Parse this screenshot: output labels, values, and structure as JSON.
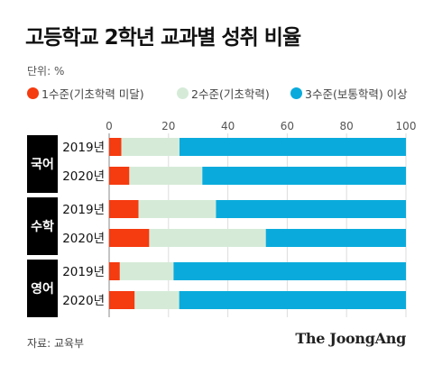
{
  "title": "고등학교 2학년 교과별 성취 비율",
  "unit": "단위: %",
  "source": "자료: 교육부",
  "brand": "The JoongAng",
  "colors": {
    "level1": "#f53b10",
    "level2": "#d5ebd8",
    "level3": "#0aabdc",
    "subject_bg": "#000000"
  },
  "legend": [
    {
      "label": "1수준(기초학력 미달)",
      "color": "#f53b10"
    },
    {
      "label": "2수준(기초학력)",
      "color": "#d5ebd8"
    },
    {
      "label": "3수준(보통학력) 이상",
      "color": "#0aabdc"
    }
  ],
  "chart_data": {
    "type": "bar",
    "orientation": "horizontal",
    "stacked": true,
    "title": "고등학교 2학년 교과별 성취 비율",
    "xlim": [
      0,
      100
    ],
    "xticks": [
      0,
      20,
      40,
      60,
      80,
      100
    ],
    "groups": [
      {
        "subject": "국어",
        "rows": [
          {
            "year": "2019년",
            "values": [
              4.1,
              19.6,
              76.3
            ]
          },
          {
            "year": "2020년",
            "values": [
              6.8,
              24.6,
              68.6
            ]
          }
        ]
      },
      {
        "subject": "수학",
        "rows": [
          {
            "year": "2019년",
            "values": [
              9.9,
              26.1,
              64.0
            ]
          },
          {
            "year": "2020년",
            "values": [
              13.5,
              39.3,
              47.2
            ]
          }
        ]
      },
      {
        "subject": "영어",
        "rows": [
          {
            "year": "2019년",
            "values": [
              3.6,
              18.1,
              78.3
            ]
          },
          {
            "year": "2020년",
            "values": [
              8.6,
              15.0,
              76.4
            ]
          }
        ]
      }
    ],
    "series": [
      {
        "name": "1수준(기초학력 미달)"
      },
      {
        "name": "2수준(기초학력)"
      },
      {
        "name": "3수준(보통학력) 이상"
      }
    ]
  }
}
